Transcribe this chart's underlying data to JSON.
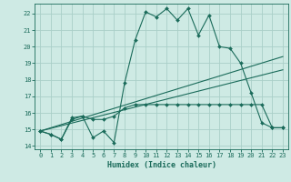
{
  "bg_color": "#ceeae4",
  "grid_color": "#aacfc8",
  "line_color": "#1a6b5a",
  "xlabel": "Humidex (Indice chaleur)",
  "ylim": [
    13.8,
    22.6
  ],
  "xlim": [
    -0.5,
    23.5
  ],
  "yticks": [
    14,
    15,
    16,
    17,
    18,
    19,
    20,
    21,
    22
  ],
  "xticks": [
    0,
    1,
    2,
    3,
    4,
    5,
    6,
    7,
    8,
    9,
    10,
    11,
    12,
    13,
    14,
    15,
    16,
    17,
    18,
    19,
    20,
    21,
    22,
    23
  ],
  "series1_x": [
    0,
    1,
    2,
    3,
    4,
    5,
    6,
    7,
    8,
    9,
    10,
    11,
    12,
    13,
    14,
    15,
    16,
    17,
    18,
    19,
    20,
    21,
    22,
    23
  ],
  "series1_y": [
    14.9,
    14.7,
    14.4,
    15.7,
    15.8,
    14.5,
    14.9,
    14.2,
    17.8,
    20.4,
    22.1,
    21.8,
    22.3,
    21.6,
    22.3,
    20.7,
    21.9,
    20.0,
    19.9,
    19.0,
    17.2,
    15.4,
    15.1,
    15.1
  ],
  "series2_x": [
    0,
    1,
    2,
    3,
    4,
    5,
    6,
    7,
    8,
    9,
    10,
    11,
    12,
    13,
    14,
    15,
    16,
    17,
    18,
    19,
    20,
    21,
    22,
    23
  ],
  "series2_y": [
    14.9,
    14.7,
    14.4,
    15.6,
    15.8,
    15.6,
    15.6,
    15.8,
    16.3,
    16.5,
    16.5,
    16.5,
    16.5,
    16.5,
    16.5,
    16.5,
    16.5,
    16.5,
    16.5,
    16.5,
    16.5,
    16.5,
    15.1,
    15.1
  ],
  "series3_x": [
    0,
    23
  ],
  "series3_y": [
    14.9,
    19.4
  ],
  "series4_x": [
    0,
    23
  ],
  "series4_y": [
    14.9,
    18.6
  ],
  "tick_fontsize": 5,
  "xlabel_fontsize": 6,
  "marker_size": 2,
  "linewidth": 0.8
}
